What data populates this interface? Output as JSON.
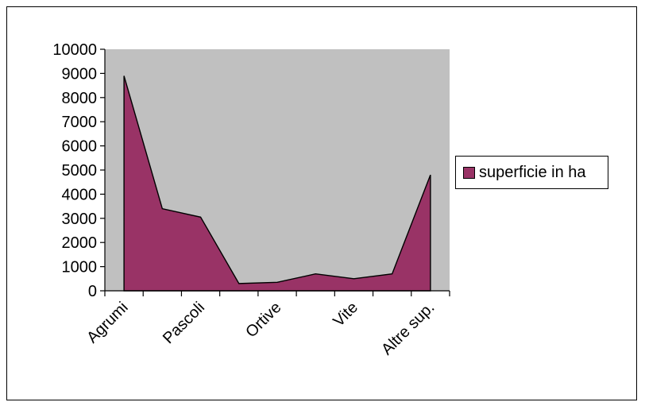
{
  "chart_data": {
    "type": "area",
    "categories": [
      "Agrumi",
      "",
      "Pascoli",
      "",
      "Ortive",
      "",
      "Vite",
      "",
      "Altre sup."
    ],
    "series": [
      {
        "name": "superficie in ha",
        "values": [
          8900,
          3400,
          3050,
          300,
          350,
          700,
          500,
          700,
          4800
        ],
        "color": "#993366"
      }
    ],
    "ylim": [
      0,
      10000
    ],
    "yticks": [
      0,
      1000,
      2000,
      3000,
      4000,
      5000,
      6000,
      7000,
      8000,
      9000,
      10000
    ],
    "plot_background": "#c0c0c0",
    "grid": false,
    "legend_position": "right"
  }
}
